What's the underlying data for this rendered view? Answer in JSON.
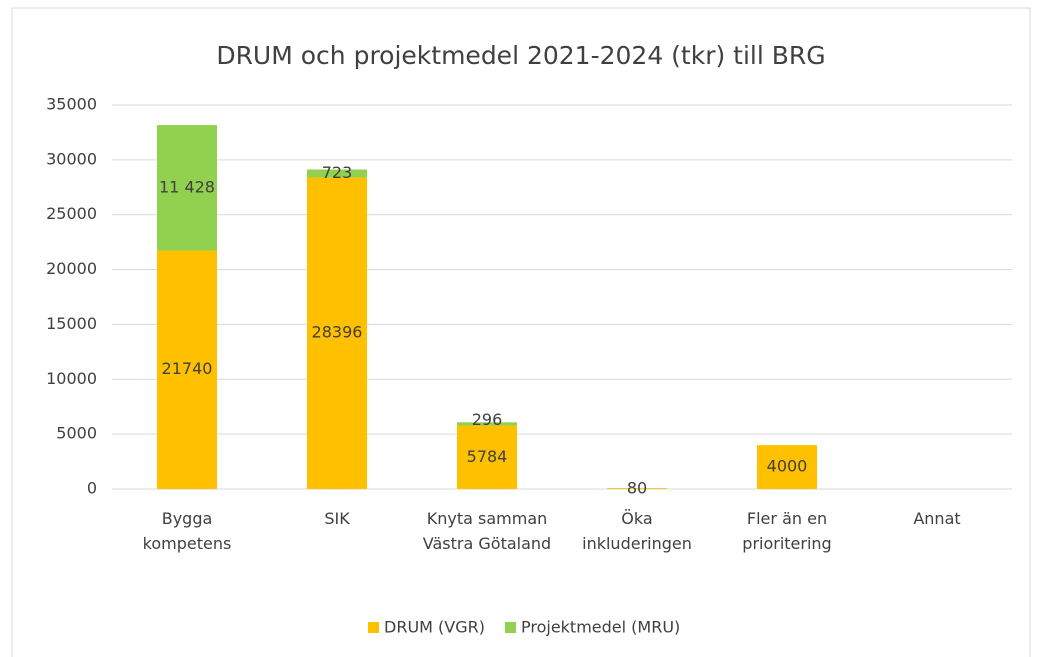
{
  "chart_data": {
    "type": "stacked_bar",
    "title": "DRUM och projektmedel 2021-2024 (tkr) till BRG",
    "categories": [
      "Bygga kompetens",
      "SIK",
      "Knyta samman Västra Götaland",
      "Öka inkluderingen",
      "Fler än en prioritering",
      "Annat"
    ],
    "series": [
      {
        "name": "DRUM (VGR)",
        "color": "#ffc000",
        "values": [
          21740,
          28396,
          5784,
          80,
          4000,
          null
        ]
      },
      {
        "name": "Projektmedel (MRU)",
        "color": "#92d050",
        "values": [
          11428,
          723,
          296,
          null,
          null,
          null
        ],
        "value_labels": [
          "11 428",
          "723",
          "296",
          null,
          null,
          null
        ]
      }
    ],
    "ylim": [
      0,
      35000
    ],
    "yticks": [
      0,
      5000,
      10000,
      15000,
      20000,
      25000,
      30000,
      35000
    ],
    "grid": true,
    "legend": "bottom"
  }
}
